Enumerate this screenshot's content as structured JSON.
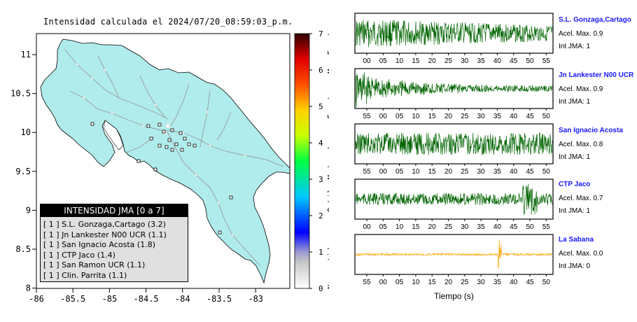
{
  "title": "Intensidad calculada el 2024/07/20_08:59:03_p.m.",
  "map": {
    "x_ticks": [
      "-86",
      "-85.5",
      "-85",
      "-84.5",
      "-84",
      "-83.5",
      "-83"
    ],
    "y_ticks": [
      "11",
      "10.5",
      "10",
      "9.5",
      "9",
      "8.5",
      "8"
    ],
    "land_color": "#b0ecec",
    "sea_color": "#ffffff"
  },
  "colorbar": {
    "ticks": [
      "0",
      "1",
      "2",
      "3",
      "4",
      "5",
      "6",
      "7"
    ],
    "labels": [
      "No sentido",
      "Debil",
      "Moderado",
      "Fuerte",
      "Muy Fuerte"
    ]
  },
  "legend": {
    "header": "INTENSIDAD JMA [0 a 7]",
    "items": [
      "[ 1 ]  S.L. Gonzaga,Cartago (3.2)",
      "[ 1 ]  Jn Lankester N00 UCR (1.1)",
      "[ 1 ]  San Ignacio Acosta (1.8)",
      "[ 1 ]  CTP Jaco (1.4)",
      "[ 1 ]  San Ramon UCR (1.1)",
      "[ 1 ]  Clin. Parrita (1.1)"
    ]
  },
  "stations": [
    {
      "name": "S.L. Gonzaga,Cartago",
      "accel": "Acel. Max. 0.9",
      "jma": "Int JMA: 1",
      "color": "#006400",
      "ticks": [
        "00",
        "05",
        "10",
        "15",
        "20",
        "25",
        "30",
        "35",
        "40",
        "45",
        "50",
        "55"
      ]
    },
    {
      "name": "Jn Lankester N00 UCR",
      "accel": "Acel. Max. 0.9",
      "jma": "Int JMA: 1",
      "color": "#006400",
      "ticks": [
        "55",
        "00",
        "05",
        "10",
        "15",
        "20",
        "25",
        "30",
        "35",
        "40",
        "45",
        "50"
      ]
    },
    {
      "name": "San Ignacio Acosta",
      "accel": "Acel. Max. 0.8",
      "jma": "Int JMA: 1",
      "color": "#006400",
      "ticks": [
        "55",
        "00",
        "05",
        "10",
        "15",
        "20",
        "25",
        "30",
        "35",
        "40",
        "45",
        "50"
      ]
    },
    {
      "name": "CTP Jaco",
      "accel": "Acel. Max. 0.7",
      "jma": "Int JMA: 1",
      "color": "#006400",
      "ticks": [
        "00",
        "05",
        "10",
        "15",
        "20",
        "25",
        "30",
        "35",
        "40",
        "45",
        "50",
        "55"
      ]
    },
    {
      "name": "La Sabana",
      "accel": "Acel. Max. 0.0",
      "jma": "Int JMA: 0",
      "color": "#ffa500",
      "ticks": [
        "55",
        "00",
        "05",
        "10",
        "15",
        "20",
        "25",
        "30",
        "35",
        "40",
        "45",
        "50"
      ]
    }
  ],
  "xlabel": "Tiempo (s)"
}
